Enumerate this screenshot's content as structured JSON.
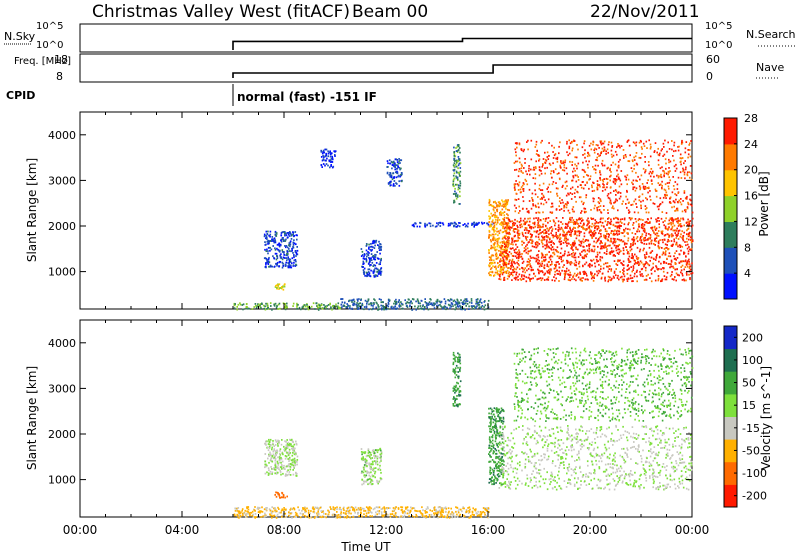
{
  "header": {
    "title": "Christmas Valley West (fitACF)",
    "beam": "Beam 00",
    "date": "22/Nov/2011"
  },
  "chart_data": [
    {
      "type": "line",
      "panel": "nsky-nsearch",
      "left_label": "N.Sky",
      "right_label": "N.Search",
      "left_ticks": [
        "10^5",
        "10^0"
      ],
      "right_ticks": [
        "10^5",
        "10^0"
      ],
      "series": [
        {
          "name": "N.Sky",
          "x": [
            0,
            6,
            6,
            15,
            15,
            24
          ],
          "y": [
            null,
            1.0,
            1.8,
            1.8,
            2.4,
            2.4
          ]
        }
      ]
    },
    {
      "type": "line",
      "panel": "freq-nave",
      "left_label": "Freq. [MHz]",
      "right_label": "Nave",
      "left_ticks": [
        "18",
        "8"
      ],
      "right_ticks": [
        "60",
        "0"
      ],
      "series": [
        {
          "name": "Freq",
          "x": [
            6,
            16.2,
            16.2,
            24
          ],
          "y": [
            10.5,
            10.5,
            14.5,
            14.5
          ]
        }
      ]
    },
    {
      "type": "table",
      "panel": "cpid",
      "label": "CPID",
      "text": "normal (fast) -151 IF",
      "start_hour": 6
    },
    {
      "type": "heatmap",
      "panel": "power",
      "xlabel": "",
      "ylabel": "Slant Range [km]",
      "xlim": [
        0,
        24
      ],
      "ylim": [
        180,
        4500
      ],
      "y_ticks": [
        "1000",
        "2000",
        "3000",
        "4000"
      ],
      "colorbar": {
        "label": "Power [dB]",
        "ticks": [
          "4",
          "8",
          "12",
          "16",
          "20",
          "24",
          "28"
        ],
        "colors": [
          "#0010ff",
          "#1e50b8",
          "#2e7d5c",
          "#8fd12a",
          "#ffc400",
          "#ff7a00",
          "#ff1a00"
        ]
      },
      "regions": [
        {
          "x0": 6.0,
          "x1": 10.2,
          "y0": 180,
          "y1": 330,
          "value": 14
        },
        {
          "x0": 10.2,
          "x1": 16.0,
          "y0": 180,
          "y1": 420,
          "value": 10
        },
        {
          "x0": 7.2,
          "x1": 8.5,
          "y0": 1100,
          "y1": 1900,
          "value": 7
        },
        {
          "x0": 7.6,
          "x1": 8.0,
          "y0": 620,
          "y1": 760,
          "value": 18
        },
        {
          "x0": 11.0,
          "x1": 11.8,
          "y0": 900,
          "y1": 1700,
          "value": 7
        },
        {
          "x0": 13.0,
          "x1": 16.2,
          "y0": 2000,
          "y1": 2100,
          "value": 6
        },
        {
          "x0": 14.6,
          "x1": 14.9,
          "y0": 2500,
          "y1": 3800,
          "value": 12
        },
        {
          "x0": 12.0,
          "x1": 12.6,
          "y0": 2900,
          "y1": 3500,
          "value": 7
        },
        {
          "x0": 9.4,
          "x1": 10.0,
          "y0": 3300,
          "y1": 3700,
          "value": 6
        },
        {
          "x0": 16.0,
          "x1": 16.8,
          "y0": 900,
          "y1": 2600,
          "value": 22
        },
        {
          "x0": 16.4,
          "x1": 24.0,
          "y0": 800,
          "y1": 1600,
          "value": 28
        },
        {
          "x0": 16.6,
          "x1": 24.0,
          "y0": 1600,
          "y1": 2200,
          "value": 27
        },
        {
          "x0": 17.0,
          "x1": 24.0,
          "y0": 2300,
          "y1": 3900,
          "value": 27
        }
      ]
    },
    {
      "type": "heatmap",
      "panel": "velocity",
      "xlabel": "Time UT",
      "ylabel": "Slant Range [km]",
      "xlim": [
        0,
        24
      ],
      "ylim": [
        180,
        4500
      ],
      "x_ticks": [
        "00:00",
        "04:00",
        "08:00",
        "12:00",
        "16:00",
        "20:00",
        "00:00"
      ],
      "y_ticks": [
        "1000",
        "2000",
        "3000",
        "4000"
      ],
      "colorbar": {
        "label": "Velocity [m s^-1]",
        "ticks": [
          "200",
          "100",
          "50",
          "15",
          "-15",
          "-50",
          "-100",
          "-200"
        ],
        "colors": [
          "#1428c8",
          "#1e6e50",
          "#3fa83a",
          "#7ee03c",
          "#c8c8c0",
          "#ffb000",
          "#ff6a00",
          "#ff1a00"
        ]
      },
      "regions": [
        {
          "x0": 6.0,
          "x1": 16.0,
          "y0": 180,
          "y1": 420,
          "value": -40
        },
        {
          "x0": 7.2,
          "x1": 8.5,
          "y0": 1100,
          "y1": 1900,
          "value": 0
        },
        {
          "x0": 7.6,
          "x1": 8.1,
          "y0": 620,
          "y1": 760,
          "value": -120
        },
        {
          "x0": 11.0,
          "x1": 11.8,
          "y0": 900,
          "y1": 1700,
          "value": 5
        },
        {
          "x0": 14.6,
          "x1": 14.9,
          "y0": 2600,
          "y1": 3800,
          "value": 60
        },
        {
          "x0": 16.0,
          "x1": 16.6,
          "y0": 900,
          "y1": 2600,
          "value": 60
        },
        {
          "x0": 16.4,
          "x1": 24.0,
          "y0": 800,
          "y1": 2200,
          "value": 0
        },
        {
          "x0": 17.0,
          "x1": 24.0,
          "y0": 2300,
          "y1": 3900,
          "value": 30
        }
      ]
    }
  ]
}
